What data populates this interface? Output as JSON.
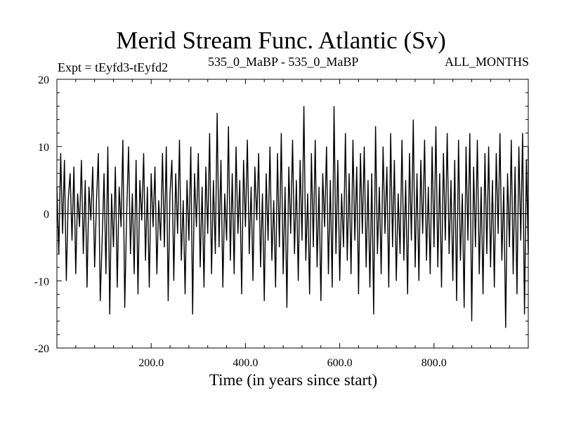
{
  "chart_data": {
    "type": "line",
    "title": "Merid Stream Func. Atlantic (Sv)",
    "subtitle_left": "Expt = tEyfd3-tEyfd2",
    "subtitle_center": "535_0_MaBP - 535_0_MaBP",
    "subtitle_right": "ALL_MONTHS",
    "xlabel": "Time (in years since start)",
    "ylabel": "",
    "xlim": [
      0,
      1000
    ],
    "ylim": [
      -20,
      20
    ],
    "x_ticks": [
      200,
      400,
      600,
      800
    ],
    "x_tick_labels": [
      "200.0",
      "400.0",
      "600.0",
      "800.0"
    ],
    "y_ticks": [
      -20,
      -10,
      0,
      10,
      20
    ],
    "y_tick_labels": [
      "-20",
      "-10",
      "0",
      "10",
      "20"
    ],
    "zero_line": true,
    "grid": false,
    "series": [
      {
        "x_start": 0,
        "x_step": 4,
        "values": [
          4,
          -6,
          9,
          -3,
          8,
          -10,
          2,
          6,
          -4,
          7,
          -9,
          3,
          -2,
          8,
          -6,
          5,
          -11,
          4,
          -1,
          7,
          -8,
          2,
          9,
          -13,
          -4,
          6,
          -9,
          10,
          -15,
          3,
          -5,
          7,
          -11,
          4,
          -2,
          11,
          -14,
          0,
          10,
          -6,
          3,
          -9,
          8,
          -12,
          5,
          -1,
          9,
          -7,
          4,
          -11,
          6,
          -2,
          7,
          -9,
          2,
          -4,
          9,
          -5,
          10,
          -13,
          3,
          8,
          -10,
          6,
          -3,
          11,
          -7,
          2,
          -12,
          5,
          -4,
          10,
          -15,
          6,
          -2,
          9,
          -8,
          4,
          -11,
          7,
          -3,
          12,
          -9,
          5,
          -6,
          15,
          -5,
          8,
          -11,
          3,
          -4,
          13,
          -7,
          6,
          -9,
          10,
          -3,
          5,
          -12,
          8,
          -2,
          11,
          -6,
          4,
          -10,
          7,
          -1,
          9,
          -8,
          3,
          -13,
          6,
          -4,
          10,
          -7,
          2,
          -11,
          9,
          -5,
          12,
          -9,
          4,
          -14,
          7,
          -3,
          11,
          -6,
          5,
          -10,
          8,
          -4,
          16,
          -7,
          3,
          -12,
          9,
          -5,
          11,
          -8,
          4,
          -13,
          6,
          -2,
          10,
          -9,
          5,
          -11,
          16,
          -6,
          8,
          -10,
          3,
          -5,
          12,
          -7,
          6,
          -9,
          11,
          -4,
          7,
          -12,
          9,
          -3,
          10,
          -8,
          5,
          -11,
          6,
          -15,
          13,
          -6,
          4,
          -9,
          10,
          -3,
          7,
          -11,
          12,
          -5,
          8,
          -10,
          3,
          -6,
          11,
          -7,
          5,
          -12,
          9,
          -4,
          14,
          -8,
          6,
          -10,
          8,
          -3,
          11,
          -7,
          4,
          -9,
          10,
          -5,
          13,
          -8,
          6,
          -11,
          9,
          -4,
          12,
          -6,
          5,
          -10,
          8,
          -13,
          11,
          -7,
          3,
          -14,
          10,
          -4,
          12,
          -16,
          7,
          -5,
          11,
          -9,
          4,
          -12,
          9,
          -6,
          10,
          -8,
          5,
          -11,
          9,
          -3,
          12,
          -7,
          4,
          -17,
          6,
          -5,
          11,
          -9,
          7,
          -12,
          10,
          -4,
          12,
          -15,
          8,
          -6,
          10
        ]
      }
    ]
  }
}
